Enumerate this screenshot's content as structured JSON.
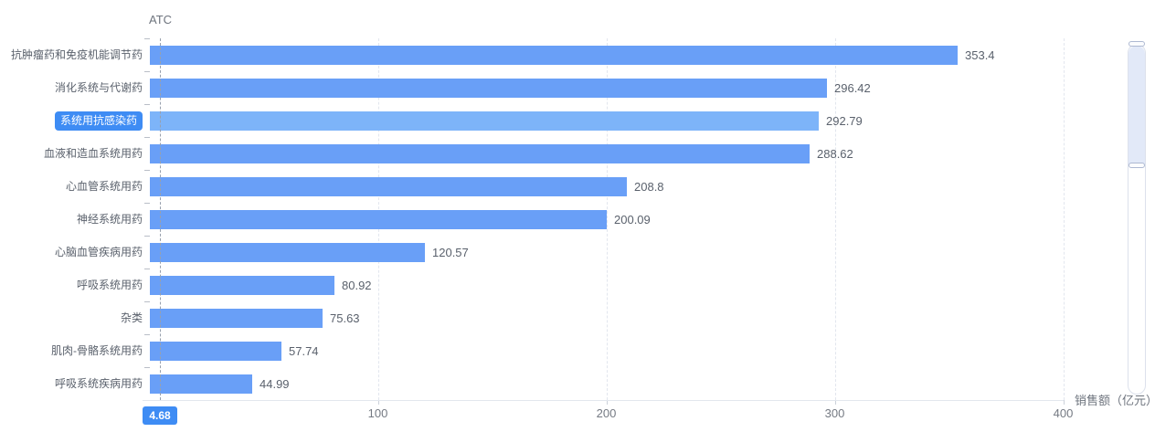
{
  "chart_data": {
    "type": "bar",
    "orientation": "horizontal",
    "y_axis_name": "ATC",
    "x_axis_name": "销售额（亿元）",
    "categories": [
      "抗肿瘤药和免疫机能调节药",
      "消化系统与代谢药",
      "系统用抗感染药",
      "血液和造血系统用药",
      "心血管系统用药",
      "神经系统用药",
      "心脑血管疾病用药",
      "呼吸系统用药",
      "杂类",
      "肌肉-骨骼系统用药",
      "呼吸系统疾病用药"
    ],
    "values": [
      353.4,
      296.42,
      292.79,
      288.62,
      208.8,
      200.09,
      120.57,
      80.92,
      75.63,
      57.74,
      44.99
    ],
    "value_labels": [
      "353.4",
      "296.42",
      "292.79",
      "288.62",
      "208.8",
      "200.09",
      "120.57",
      "80.92",
      "75.63",
      "57.74",
      "44.99"
    ],
    "xlim": [
      0,
      400
    ],
    "x_ticks": [
      "100",
      "200",
      "300",
      "400"
    ],
    "x_tick_values": [
      100,
      200,
      300,
      400
    ],
    "grid": "vertical-dashed",
    "legend_position": "none",
    "highlighted_index": 2,
    "axis_pointer": {
      "value_label": "4.68",
      "category_label": "系统用抗感染药"
    }
  },
  "colors": {
    "bar": "#699ff7",
    "bar_highlight": "#7db4f9",
    "pointer_badge_bg": "#3e8cf4",
    "pointer_badge_text": "#ffffff",
    "grid_line": "#e2e6ee",
    "axis_text": "#6e747e",
    "value_text": "#5a616c",
    "datazoom_selection_fill": "#e2e9f8"
  },
  "data_zoom": {
    "orientation": "vertical",
    "position": "right"
  }
}
